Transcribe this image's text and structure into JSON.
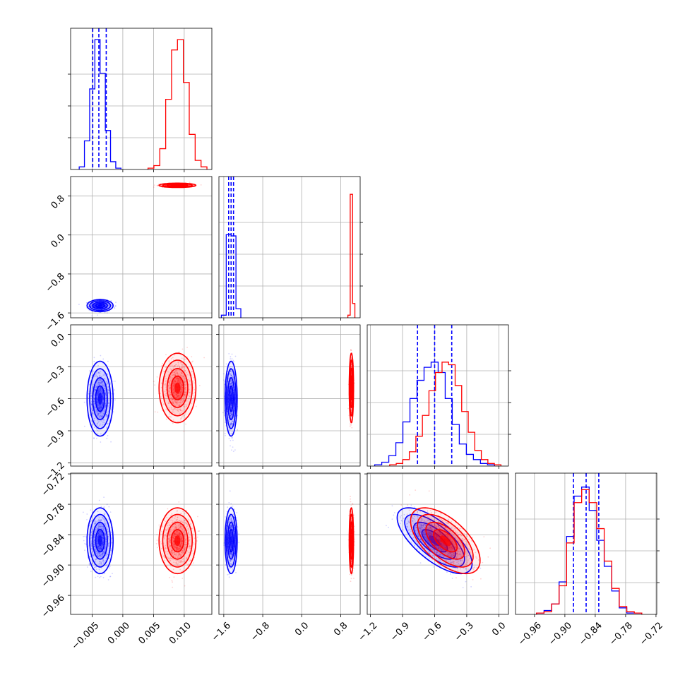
{
  "chart_data": {
    "type": "scatter",
    "subtype": "corner-plot",
    "title": "",
    "grid": true,
    "colors": {
      "blue": "#0000ff",
      "red": "#ff0000"
    },
    "params": [
      {
        "id": "p0",
        "lim": [
          -0.0085,
          0.0145
        ],
        "ticks": [
          -0.005,
          0.0,
          0.005,
          0.01
        ],
        "tick_labels": [
          "−0.005",
          "0.000",
          "0.005",
          "0.010"
        ]
      },
      {
        "id": "p1",
        "lim": [
          -1.7,
          1.2
        ],
        "ticks": [
          -1.6,
          -0.8,
          0.0,
          0.8
        ],
        "tick_labels": [
          "−1.6",
          "−0.8",
          "0.0",
          "0.8"
        ]
      },
      {
        "id": "p2",
        "lim": [
          -1.23,
          0.09
        ],
        "ticks": [
          -1.2,
          -0.9,
          -0.6,
          -0.3,
          0.0
        ],
        "tick_labels": [
          "−1.2",
          "−0.9",
          "−0.6",
          "−0.3",
          "0.0"
        ]
      },
      {
        "id": "p3",
        "lim": [
          -0.9975,
          -0.7185
        ],
        "ticks": [
          -0.96,
          -0.9,
          -0.84,
          -0.78,
          -0.72
        ],
        "tick_labels": [
          "−0.96",
          "−0.90",
          "−0.84",
          "−0.78",
          "−0.72"
        ]
      }
    ],
    "series": [
      {
        "color": "#0000ff",
        "means": [
          -0.0037,
          -1.45,
          -0.6,
          -0.852
        ],
        "sds": [
          0.00085,
          0.05,
          0.14,
          0.026
        ],
        "quantiles": [
          [
            -0.0049,
            -0.0039,
            -0.0027
          ],
          [
            -1.5,
            -1.45,
            -1.4
          ],
          [
            -0.76,
            -0.6,
            -0.44
          ],
          [
            -0.883,
            -0.858,
            -0.833
          ]
        ],
        "hists": [
          [
            0.02,
            0.22,
            0.62,
            1.0,
            0.74,
            0.3,
            0.06,
            0.01
          ],
          [
            0.02,
            0.64,
            0.63,
            0.07
          ],
          [
            0.01,
            0.03,
            0.08,
            0.18,
            0.34,
            0.52,
            0.66,
            0.76,
            0.8,
            0.72,
            0.52,
            0.32,
            0.17,
            0.09,
            0.05,
            0.02,
            0.01
          ],
          [
            0.01,
            0.03,
            0.08,
            0.25,
            0.6,
            0.91,
            0.98,
            0.8,
            0.57,
            0.37,
            0.18,
            0.05,
            0.01,
            0.01
          ]
        ]
      },
      {
        "color": "#ff0000",
        "means": [
          0.0089,
          1.02,
          -0.5,
          -0.852
        ],
        "sds": [
          0.0012,
          0.018,
          0.13,
          0.026
        ],
        "quantiles": [],
        "hists": [
          [
            0.01,
            0.03,
            0.16,
            0.54,
            0.92,
            1.0,
            0.67,
            0.27,
            0.07,
            0.02
          ],
          [
            0.02,
            0.95,
            0.11
          ],
          [
            0.01,
            0.02,
            0.05,
            0.11,
            0.23,
            0.39,
            0.58,
            0.72,
            0.8,
            0.78,
            0.62,
            0.42,
            0.26,
            0.12,
            0.05,
            0.02,
            0.01
          ],
          [
            0.01,
            0.02,
            0.08,
            0.22,
            0.55,
            0.86,
            0.96,
            0.86,
            0.66,
            0.41,
            0.2,
            0.06,
            0.02,
            0.01
          ]
        ]
      }
    ],
    "correlations": [
      {
        "params": [
          2,
          3
        ],
        "blue_rho": -0.7,
        "red_rho": -0.6
      }
    ]
  }
}
